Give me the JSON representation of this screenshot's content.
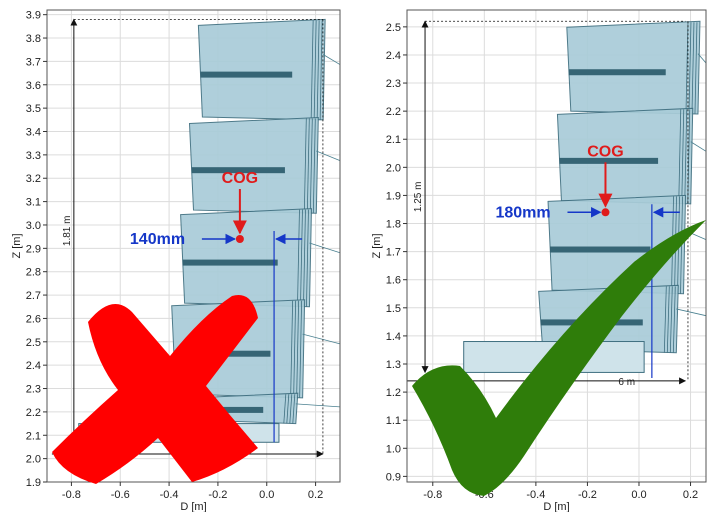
{
  "chart_data": [
    {
      "type": "diagram",
      "xlabel": "D [m]",
      "ylabel": "Z [m]",
      "xlim": [
        -0.9,
        0.3
      ],
      "ylim": [
        1.9,
        3.92
      ],
      "xticks": [
        -0.8,
        -0.6,
        -0.4,
        -0.2,
        0.0,
        0.2
      ],
      "xtick_labels": [
        "-0.8",
        "-0.6",
        "-0.4",
        "-0.2",
        "0.0",
        "0.2"
      ],
      "yticks": [
        1.9,
        2.0,
        2.1,
        2.2,
        2.3,
        2.4,
        2.5,
        2.6,
        2.7,
        2.8,
        2.9,
        3.0,
        3.1,
        3.2,
        3.3,
        3.4,
        3.5,
        3.6,
        3.7,
        3.8,
        3.9
      ],
      "ytick_labels": [
        "1.9",
        "2.0",
        "2.1",
        "2.2",
        "2.3",
        "2.4",
        "2.5",
        "2.6",
        "2.7",
        "2.8",
        "2.9",
        "3.0",
        "3.1",
        "3.2",
        "3.3",
        "3.4",
        "3.5",
        "3.6",
        "3.7",
        "3.8",
        "3.9"
      ],
      "grid": true,
      "height_dimension": {
        "label": "1.81 m",
        "z_bottom": 2.07,
        "z_top": 3.88
      },
      "cog": {
        "label": "COG",
        "d": -0.11,
        "z": 2.94
      },
      "cog_offset": {
        "label": "140mm",
        "d_cog": -0.11,
        "d_ref": 0.03
      },
      "cabinets": [
        {
          "z_bottom": 3.45,
          "z_top": 3.88
        },
        {
          "z_bottom": 3.05,
          "z_top": 3.46
        },
        {
          "z_bottom": 2.65,
          "z_top": 3.07
        },
        {
          "z_bottom": 2.26,
          "z_top": 2.68
        },
        {
          "z_bottom": 2.15,
          "z_top": 2.28
        }
      ],
      "verdict": "cross",
      "verdict_color": "#ff0000"
    },
    {
      "type": "diagram",
      "xlabel": "D [m]",
      "ylabel": "Z [m]",
      "xlim": [
        -0.9,
        0.26
      ],
      "ylim": [
        0.88,
        2.56
      ],
      "xticks": [
        -0.8,
        -0.6,
        -0.4,
        -0.2,
        0.0,
        0.2
      ],
      "xtick_labels": [
        "-0.8",
        "-0.6",
        "-0.4",
        "-0.2",
        "0.0",
        "0.2"
      ],
      "yticks": [
        0.9,
        1.0,
        1.1,
        1.2,
        1.3,
        1.4,
        1.5,
        1.6,
        1.7,
        1.8,
        1.9,
        2.0,
        2.1,
        2.2,
        2.3,
        2.4,
        2.5
      ],
      "ytick_labels": [
        "0.9",
        "1.0",
        "1.1",
        "1.2",
        "1.3",
        "1.4",
        "1.5",
        "1.6",
        "1.7",
        "1.8",
        "1.9",
        "2.0",
        "2.1",
        "2.2",
        "2.3",
        "2.4",
        "2.5"
      ],
      "grid": true,
      "height_dimension": {
        "label": "1.25 m",
        "z_bottom": 1.27,
        "z_top": 2.52
      },
      "width_dimension": {
        "label": "6 m",
        "z": 1.24,
        "d_left": -0.9,
        "d_right": 0.18
      },
      "cog": {
        "label": "COG",
        "d": -0.13,
        "z": 1.84
      },
      "cog_offset": {
        "label": "180mm",
        "d_cog": -0.13,
        "d_ref": 0.05
      },
      "cabinets": [
        {
          "z_bottom": 2.19,
          "z_top": 2.52
        },
        {
          "z_bottom": 1.87,
          "z_top": 2.21
        },
        {
          "z_bottom": 1.55,
          "z_top": 1.9
        },
        {
          "z_bottom": 1.34,
          "z_top": 1.58
        }
      ],
      "verdict": "check",
      "verdict_color": "#2f7d0a"
    }
  ]
}
